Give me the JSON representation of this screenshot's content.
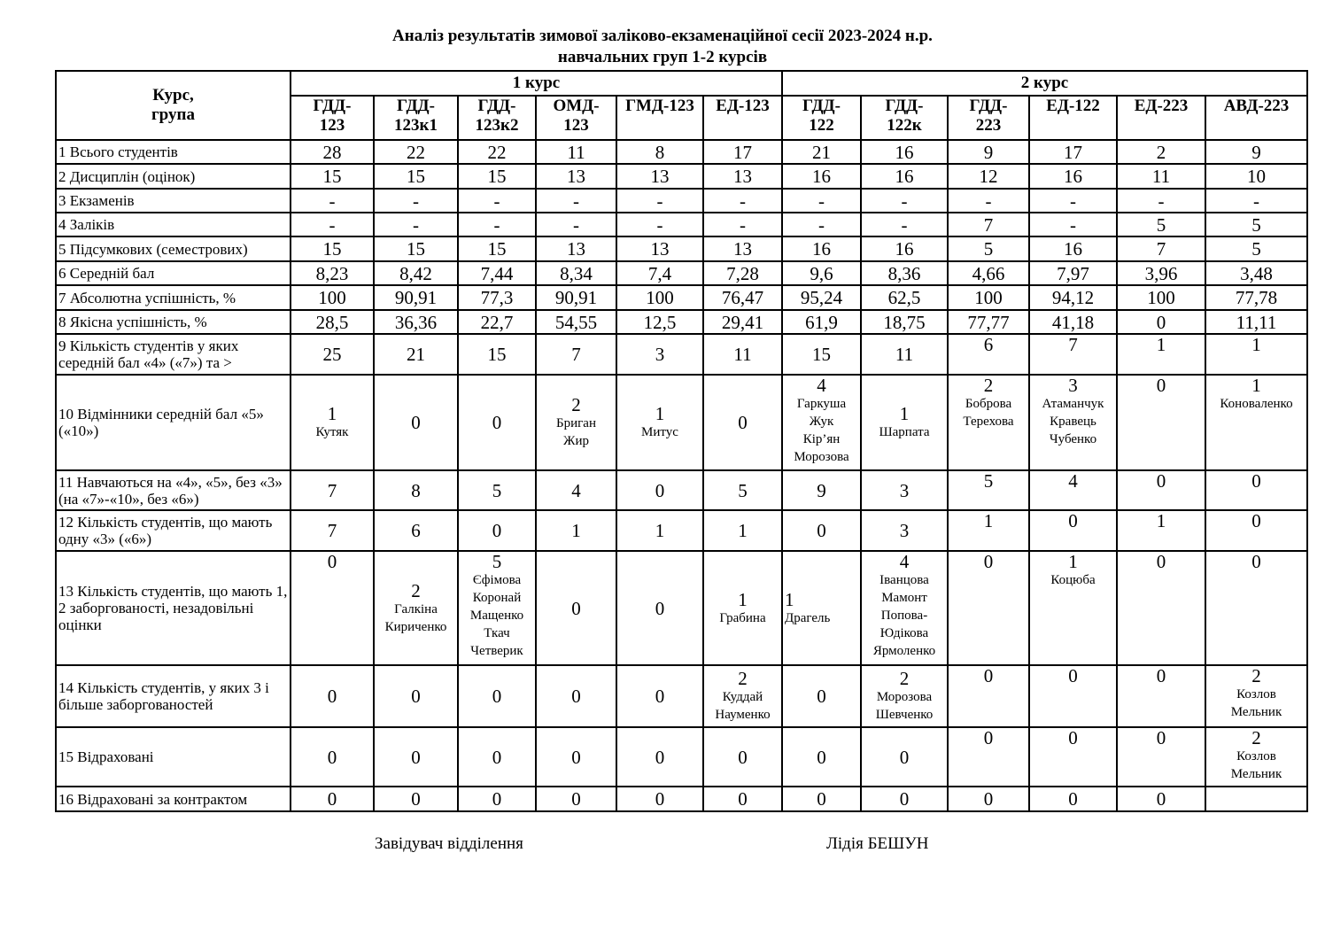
{
  "title_line1": "Аналіз результатів зимової заліково-екзаменаційної сесії 2023-2024 н.р.",
  "title_line2": "навчальних груп 1-2 курсів",
  "header": {
    "corner": "Курс,\nгрупа",
    "courses": [
      {
        "label": "1 курс",
        "span": 6
      },
      {
        "label": "2 курс",
        "span": 6
      }
    ],
    "groups": [
      "ГДД-\n123",
      "ГДД-\n123к1",
      "ГДД-\n123к2",
      "ОМД-\n123",
      "ГМД-123",
      "ЕД-123",
      "ГДД-\n122",
      "ГДД-\n122к",
      "ГДД-\n223",
      "ЕД-122",
      "ЕД-223",
      "АВД-223"
    ]
  },
  "rows": [
    {
      "label": "1 Всього студентів",
      "cells": [
        "28",
        "22",
        "22",
        "11",
        "8",
        "17",
        "21",
        "16",
        "9",
        "17",
        "2",
        "9"
      ]
    },
    {
      "label": "2 Дисциплін (оцінок)",
      "cells": [
        "15",
        "15",
        "15",
        "13",
        "13",
        "13",
        "16",
        "16",
        "12",
        "16",
        "11",
        "10"
      ]
    },
    {
      "label": "3 Екзаменів",
      "cells": [
        "-",
        "-",
        "-",
        "-",
        "-",
        "-",
        "-",
        "-",
        "-",
        "-",
        "-",
        "-"
      ]
    },
    {
      "label": "4 Заліків",
      "cells": [
        "-",
        "-",
        "-",
        "-",
        "-",
        "-",
        "-",
        "-",
        "7",
        "-",
        "5",
        "5"
      ]
    },
    {
      "label": "5 Підсумкових (семестрових)",
      "cells": [
        "15",
        "15",
        "15",
        "13",
        "13",
        "13",
        "16",
        "16",
        "5",
        "16",
        "7",
        "5"
      ]
    },
    {
      "label": "6 Середній бал",
      "cells": [
        "8,23",
        "8,42",
        "7,44",
        "8,34",
        "7,4",
        "7,28",
        "9,6",
        "8,36",
        "4,66",
        "7,97",
        "3,96",
        "3,48"
      ]
    },
    {
      "label": "7 Абсолютна успішність, %",
      "cells": [
        "100",
        "90,91",
        "77,3",
        "90,91",
        "100",
        "76,47",
        "95,24",
        "62,5",
        "100",
        "94,12",
        "100",
        "77,78"
      ]
    },
    {
      "label": "8 Якісна успішність, %",
      "cells": [
        "28,5",
        "36,36",
        "22,7",
        "54,55",
        "12,5",
        "29,41",
        "61,9",
        "18,75",
        "77,77",
        "41,18",
        "0",
        "11,11"
      ]
    },
    {
      "label": "9 Кількість студентів у яких середній бал «4» («7») та  >",
      "cells": [
        "25",
        "21",
        "15",
        "7",
        "3",
        "11",
        "15",
        "11",
        "6",
        "7",
        "1",
        "1"
      ]
    },
    {
      "label": "10 Відмінники середній бал «5» («10»)",
      "cells": [
        "1\nКутяк",
        "0",
        "0",
        "2\nБриган\nЖир",
        "1\nМитус",
        "0",
        "4\nГаркуша\nЖук\nКір’ян\nМорозова",
        "1\nШарпата",
        "2\nБоброва\nТерехова",
        "3\nАтаманчук\nКравець\nЧубенко",
        "0",
        "1\nКоноваленко"
      ]
    },
    {
      "label": "11 Навчаються на «4», «5», без «3» (на «7»-«10», без «6»)",
      "cells": [
        "7",
        "8",
        "5",
        "4",
        "0",
        "5",
        "9",
        "3",
        "5",
        "4",
        "0",
        "0"
      ]
    },
    {
      "label": "12 Кількість студентів, що мають одну «3» («6»)",
      "cells": [
        "7",
        "6",
        "0",
        "1",
        "1",
        "1",
        "0",
        "3",
        "1",
        "0",
        "1",
        "0"
      ]
    },
    {
      "label": "13 Кількість студентів, що мають 1, 2 заборгованості, незадовільні оцінки",
      "cells": [
        "0",
        "2\nГалкіна\nКириченко",
        "5\nЄфімова\nКоронай\nМащенко\nТкач\nЧетверик",
        "0",
        "0",
        "1\nГрабина",
        "1\nДрагель",
        "4\nІванцова\nМамонт\nПопова-\nЮдікова\nЯрмоленко",
        "0",
        "1\nКоцюба",
        "0",
        "0"
      ]
    },
    {
      "label": "14 Кількість студентів, у яких 3 і більше заборгованостей",
      "cells": [
        "0",
        "0",
        "0",
        "0",
        "0",
        "2\nКуддай\nНауменко",
        "0",
        "2\nМорозова\nШевченко",
        "0",
        "0",
        "0",
        "2\nКозлов\nМельник"
      ]
    },
    {
      "label": "15 Відраховані",
      "cells": [
        "0",
        "0",
        "0",
        "0",
        "0",
        "0",
        "0",
        "0",
        "0",
        "0",
        "0",
        "2\nКозлов\nМельник"
      ]
    },
    {
      "label": "16 Відраховані за контрактом",
      "cells": [
        "0",
        "0",
        "0",
        "0",
        "0",
        "0",
        "0",
        "0",
        "0",
        "0",
        "0",
        ""
      ]
    }
  ],
  "footer": {
    "position": "Завідувач відділення",
    "name": "Лідія БЕШУН"
  }
}
